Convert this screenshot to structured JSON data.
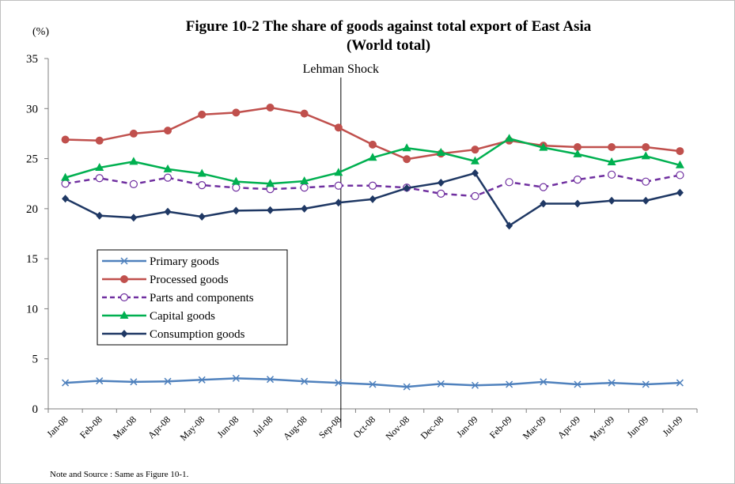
{
  "chart_data": {
    "type": "line",
    "title_line1": "Figure 10-2 The share of goods against total export of East Asia",
    "title_line2": "(World total)",
    "ylabel": "(%)",
    "ylim": [
      0,
      35
    ],
    "yticks": [
      0,
      5,
      10,
      15,
      20,
      25,
      30,
      35
    ],
    "categories": [
      "Jan-08",
      "Feb-08",
      "Mar-08",
      "Apr-08",
      "May-08",
      "Jun-08",
      "Jul-08",
      "Aug-08",
      "Sep-08",
      "Oct-08",
      "Nov-08",
      "Dec-08",
      "Jan-09",
      "Feb-09",
      "Mar-09",
      "Apr-09",
      "May-09",
      "Jun-09",
      "Jul-09"
    ],
    "annotation": {
      "text": "Lehman Shock",
      "category": "Sep-08"
    },
    "legend_position": "left",
    "grid": false,
    "series": [
      {
        "name": "Primary goods",
        "color": "#4f81bd",
        "marker": "x",
        "dash": false,
        "values": [
          2.6,
          2.8,
          2.7,
          2.75,
          2.9,
          3.05,
          2.95,
          2.75,
          2.6,
          2.45,
          2.2,
          2.5,
          2.35,
          2.45,
          2.7,
          2.45,
          2.6,
          2.45,
          2.6
        ]
      },
      {
        "name": "Processed goods",
        "color": "#c0504d",
        "marker": "circle",
        "dash": false,
        "values": [
          26.9,
          26.8,
          27.5,
          27.8,
          29.4,
          29.6,
          30.1,
          29.5,
          28.1,
          26.4,
          24.95,
          25.5,
          25.9,
          26.8,
          26.3,
          26.15,
          26.15,
          26.15,
          25.75
        ]
      },
      {
        "name": "Parts and components",
        "color": "#7030a0",
        "marker": "open-circle",
        "dash": true,
        "values": [
          22.5,
          23.05,
          22.45,
          23.1,
          22.35,
          22.1,
          21.95,
          22.1,
          22.3,
          22.3,
          22.1,
          21.5,
          21.25,
          22.65,
          22.15,
          22.9,
          23.4,
          22.7,
          23.35
        ]
      },
      {
        "name": "Capital goods",
        "color": "#00b050",
        "marker": "triangle",
        "dash": false,
        "values": [
          23.1,
          24.1,
          24.7,
          23.95,
          23.5,
          22.7,
          22.5,
          22.75,
          23.6,
          25.1,
          26.05,
          25.6,
          24.75,
          27.0,
          26.1,
          25.45,
          24.65,
          25.25,
          24.35
        ]
      },
      {
        "name": "Consumption goods",
        "color": "#1f3864",
        "marker": "diamond",
        "dash": false,
        "values": [
          21.0,
          19.3,
          19.1,
          19.7,
          19.2,
          19.8,
          19.85,
          20.0,
          20.6,
          20.95,
          22.05,
          22.6,
          23.55,
          18.3,
          20.5,
          20.5,
          20.8,
          20.8,
          21.6
        ]
      }
    ],
    "note": "Note and Source : Same as Figure 10-1."
  }
}
